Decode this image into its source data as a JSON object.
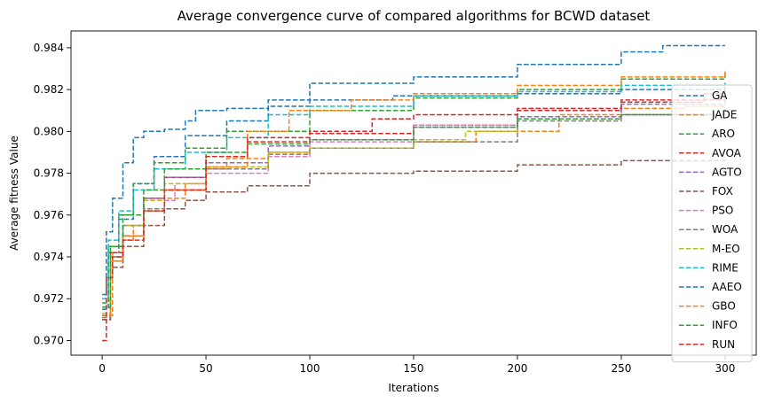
{
  "chart_data": {
    "type": "line",
    "title": "Average convergence curve of compared algorithms for BCWD dataset",
    "xlabel": "Iterations",
    "ylabel": "Average fitness Value",
    "xlim": [
      -15,
      315
    ],
    "ylim": [
      0.9693,
      0.9848
    ],
    "xticks": [
      0,
      50,
      100,
      150,
      200,
      250,
      300
    ],
    "yticks": [
      0.97,
      0.972,
      0.974,
      0.976,
      0.978,
      0.98,
      0.982,
      0.984
    ],
    "ytick_labels": [
      "0.970",
      "0.972",
      "0.974",
      "0.976",
      "0.978",
      "0.980",
      "0.982",
      "0.984"
    ],
    "line_style": "dashed",
    "grid": false,
    "legend_position": "right",
    "series": [
      {
        "name": "GA",
        "color": "#1f77b4",
        "points": [
          [
            0,
            0.9715
          ],
          [
            3,
            0.9742
          ],
          [
            8,
            0.9758
          ],
          [
            15,
            0.9775
          ],
          [
            25,
            0.9788
          ],
          [
            40,
            0.9798
          ],
          [
            60,
            0.9805
          ],
          [
            80,
            0.9812
          ],
          [
            100,
            0.9815
          ],
          [
            140,
            0.9817
          ],
          [
            200,
            0.9818
          ],
          [
            250,
            0.982
          ],
          [
            300,
            0.9822
          ]
        ]
      },
      {
        "name": "JADE",
        "color": "#ff7f0e",
        "points": [
          [
            0,
            0.9712
          ],
          [
            5,
            0.9742
          ],
          [
            10,
            0.9748
          ],
          [
            15,
            0.9755
          ],
          [
            20,
            0.9762
          ],
          [
            30,
            0.9768
          ],
          [
            40,
            0.9775
          ],
          [
            50,
            0.9782
          ],
          [
            60,
            0.9787
          ],
          [
            80,
            0.979
          ],
          [
            100,
            0.9792
          ],
          [
            150,
            0.9795
          ],
          [
            180,
            0.98
          ],
          [
            220,
            0.9808
          ],
          [
            250,
            0.9811
          ],
          [
            280,
            0.9812
          ],
          [
            300,
            0.9812
          ]
        ]
      },
      {
        "name": "ARO",
        "color": "#2ca02c",
        "points": [
          [
            0,
            0.9718
          ],
          [
            3,
            0.9745
          ],
          [
            8,
            0.976
          ],
          [
            15,
            0.9775
          ],
          [
            25,
            0.9785
          ],
          [
            40,
            0.9792
          ],
          [
            60,
            0.98
          ],
          [
            100,
            0.981
          ],
          [
            150,
            0.9816
          ],
          [
            200,
            0.982
          ],
          [
            250,
            0.9825
          ],
          [
            300,
            0.9829
          ]
        ]
      },
      {
        "name": "AVOA",
        "color": "#d62728",
        "points": [
          [
            0,
            0.971
          ],
          [
            4,
            0.9742
          ],
          [
            10,
            0.9755
          ],
          [
            20,
            0.9768
          ],
          [
            30,
            0.9778
          ],
          [
            50,
            0.9788
          ],
          [
            70,
            0.9795
          ],
          [
            100,
            0.9799
          ],
          [
            150,
            0.9803
          ],
          [
            200,
            0.981
          ],
          [
            250,
            0.9815
          ],
          [
            300,
            0.982
          ]
        ]
      },
      {
        "name": "AGTO",
        "color": "#9467bd",
        "points": [
          [
            0,
            0.9712
          ],
          [
            4,
            0.974
          ],
          [
            10,
            0.9755
          ],
          [
            20,
            0.9768
          ],
          [
            30,
            0.9778
          ],
          [
            50,
            0.9785
          ],
          [
            80,
            0.9793
          ],
          [
            100,
            0.9796
          ],
          [
            150,
            0.9802
          ],
          [
            200,
            0.9807
          ],
          [
            250,
            0.9813
          ],
          [
            300,
            0.9817
          ]
        ]
      },
      {
        "name": "FOX",
        "color": "#8c564b",
        "points": [
          [
            0,
            0.971
          ],
          [
            4,
            0.9735
          ],
          [
            10,
            0.9745
          ],
          [
            20,
            0.9755
          ],
          [
            30,
            0.9763
          ],
          [
            40,
            0.9767
          ],
          [
            50,
            0.9771
          ],
          [
            70,
            0.9774
          ],
          [
            100,
            0.978
          ],
          [
            150,
            0.9781
          ],
          [
            200,
            0.9784
          ],
          [
            250,
            0.9786
          ],
          [
            300,
            0.9788
          ]
        ]
      },
      {
        "name": "PSO",
        "color": "#e377c2",
        "points": [
          [
            0,
            0.9713
          ],
          [
            4,
            0.974
          ],
          [
            10,
            0.9755
          ],
          [
            20,
            0.9767
          ],
          [
            35,
            0.9775
          ],
          [
            50,
            0.978
          ],
          [
            80,
            0.9788
          ],
          [
            100,
            0.9795
          ],
          [
            150,
            0.9803
          ],
          [
            200,
            0.9806
          ],
          [
            250,
            0.9808
          ],
          [
            300,
            0.981
          ]
        ]
      },
      {
        "name": "WOA",
        "color": "#7f7f7f",
        "points": [
          [
            0,
            0.9711
          ],
          [
            4,
            0.9738
          ],
          [
            10,
            0.975
          ],
          [
            20,
            0.9763
          ],
          [
            30,
            0.9772
          ],
          [
            50,
            0.9782
          ],
          [
            80,
            0.9789
          ],
          [
            100,
            0.9792
          ],
          [
            150,
            0.9795
          ],
          [
            200,
            0.9805
          ],
          [
            250,
            0.9808
          ],
          [
            300,
            0.9811
          ]
        ]
      },
      {
        "name": "M-EO",
        "color": "#bcbd22",
        "points": [
          [
            0,
            0.9713
          ],
          [
            4,
            0.974
          ],
          [
            10,
            0.9755
          ],
          [
            20,
            0.9767
          ],
          [
            30,
            0.9775
          ],
          [
            50,
            0.9783
          ],
          [
            80,
            0.979
          ],
          [
            100,
            0.9792
          ],
          [
            150,
            0.9796
          ],
          [
            175,
            0.98
          ],
          [
            200,
            0.9801
          ]
        ]
      },
      {
        "name": "RIME",
        "color": "#17becf",
        "points": [
          [
            0,
            0.972
          ],
          [
            3,
            0.9748
          ],
          [
            8,
            0.9762
          ],
          [
            15,
            0.9772
          ],
          [
            25,
            0.9782
          ],
          [
            40,
            0.979
          ],
          [
            60,
            0.9797
          ],
          [
            80,
            0.9808
          ],
          [
            100,
            0.9812
          ],
          [
            150,
            0.9817
          ],
          [
            200,
            0.9819
          ],
          [
            250,
            0.9822
          ],
          [
            300,
            0.9824
          ]
        ]
      },
      {
        "name": "AAEO",
        "color": "#1f77b4",
        "points": [
          [
            0,
            0.9722
          ],
          [
            2,
            0.9752
          ],
          [
            5,
            0.9768
          ],
          [
            10,
            0.9785
          ],
          [
            15,
            0.9797
          ],
          [
            20,
            0.98
          ],
          [
            30,
            0.9801
          ],
          [
            40,
            0.9805
          ],
          [
            45,
            0.981
          ],
          [
            60,
            0.9811
          ],
          [
            80,
            0.9815
          ],
          [
            100,
            0.9823
          ],
          [
            150,
            0.9826
          ],
          [
            200,
            0.9832
          ],
          [
            250,
            0.9838
          ],
          [
            270,
            0.9841
          ],
          [
            300,
            0.9841
          ]
        ]
      },
      {
        "name": "GBO",
        "color": "#ff7f0e",
        "points": [
          [
            0,
            0.9712
          ],
          [
            4,
            0.9738
          ],
          [
            10,
            0.975
          ],
          [
            20,
            0.9762
          ],
          [
            30,
            0.9772
          ],
          [
            50,
            0.9783
          ],
          [
            70,
            0.98
          ],
          [
            90,
            0.981
          ],
          [
            120,
            0.9815
          ],
          [
            150,
            0.9818
          ],
          [
            200,
            0.9822
          ],
          [
            250,
            0.9826
          ],
          [
            300,
            0.9829
          ]
        ]
      },
      {
        "name": "INFO",
        "color": "#2ca02c",
        "points": [
          [
            0,
            0.9716
          ],
          [
            4,
            0.9745
          ],
          [
            10,
            0.976
          ],
          [
            20,
            0.9772
          ],
          [
            30,
            0.9782
          ],
          [
            50,
            0.979
          ],
          [
            70,
            0.9794
          ],
          [
            100,
            0.9796
          ],
          [
            150,
            0.9802
          ],
          [
            200,
            0.9806
          ],
          [
            250,
            0.9808
          ],
          [
            300,
            0.9808
          ]
        ]
      },
      {
        "name": "RUN",
        "color": "#d62728",
        "points": [
          [
            0,
            0.97
          ],
          [
            2,
            0.973
          ],
          [
            5,
            0.974
          ],
          [
            10,
            0.9748
          ],
          [
            20,
            0.9762
          ],
          [
            30,
            0.9772
          ],
          [
            50,
            0.9788
          ],
          [
            70,
            0.9797
          ],
          [
            100,
            0.98
          ],
          [
            130,
            0.9806
          ],
          [
            150,
            0.9808
          ],
          [
            200,
            0.9811
          ],
          [
            250,
            0.9814
          ],
          [
            290,
            0.9818
          ],
          [
            300,
            0.9819
          ]
        ]
      }
    ]
  }
}
